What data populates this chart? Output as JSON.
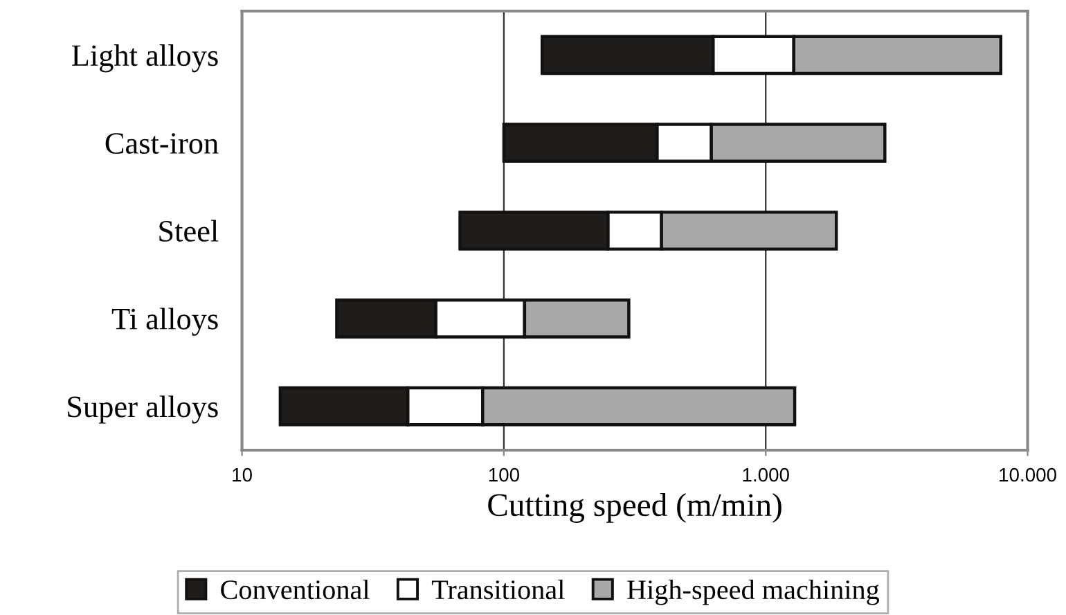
{
  "chart_data": {
    "type": "bar",
    "orientation": "horizontal",
    "xlabel": "Cutting speed (m/min)",
    "categories": [
      "Light alloys",
      "Cast-iron",
      "Steel",
      "Ti alloys",
      "Super alloys"
    ],
    "series": [
      {
        "name": "Conventional",
        "color": "#201c1a",
        "base": [
          140,
          100,
          68,
          23,
          14
        ],
        "values": [
          490,
          285,
          182,
          32,
          29
        ]
      },
      {
        "name": "Transitional",
        "color": "#ffffff",
        "base": [
          630,
          385,
          250,
          55,
          43
        ],
        "values": [
          650,
          235,
          150,
          65,
          40
        ]
      },
      {
        "name": "High-speed machining",
        "color": "#a8a8a8",
        "base": [
          1280,
          620,
          400,
          120,
          83
        ],
        "values": [
          6620,
          2230,
          1460,
          180,
          1207
        ]
      }
    ],
    "log": "x",
    "xlim": [
      10,
      10000
    ],
    "xticks": [
      10,
      100,
      {
        "value": 1000,
        "label": "1.000"
      },
      {
        "value": 10000,
        "label": "10.000"
      }
    ],
    "grid": "x",
    "legend": "bottom"
  }
}
